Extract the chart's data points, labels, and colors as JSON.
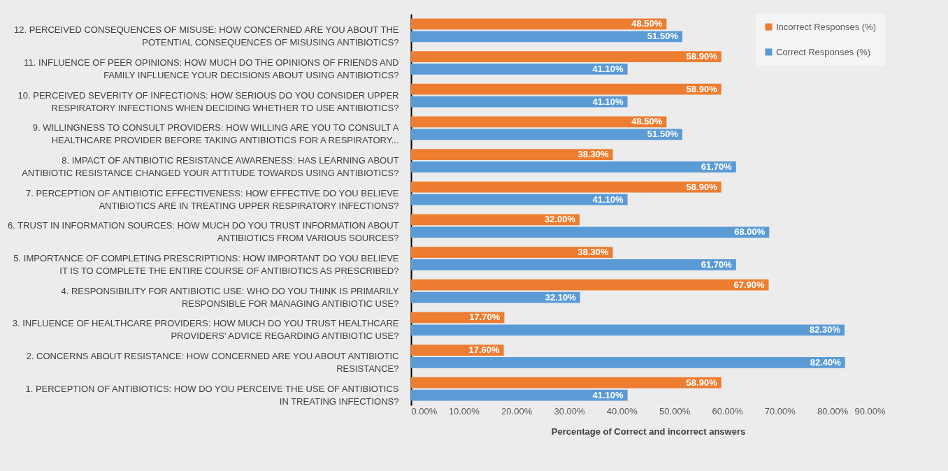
{
  "chart_data": {
    "type": "bar",
    "orientation": "horizontal",
    "xlabel": "Percentage of Correct and incorrect answers",
    "categories": [
      "12. PERCEIVED CONSEQUENCES OF MISUSE: HOW CONCERNED ARE YOU ABOUT THE POTENTIAL CONSEQUENCES OF MISUSING ANTIBIOTICS?",
      "11. INFLUENCE OF PEER OPINIONS: HOW MUCH DO THE OPINIONS OF FRIENDS AND FAMILY INFLUENCE YOUR DECISIONS ABOUT USING ANTIBIOTICS?",
      "10. PERCEIVED SEVERITY OF INFECTIONS: HOW SERIOUS DO YOU CONSIDER UPPER RESPIRATORY INFECTIONS WHEN DECIDING WHETHER TO USE ANTIBIOTICS?",
      "9. WILLINGNESS TO CONSULT PROVIDERS: HOW WILLING ARE YOU TO CONSULT A HEALTHCARE PROVIDER BEFORE TAKING ANTIBIOTICS FOR A RESPIRATORY...",
      "8. IMPACT OF ANTIBIOTIC RESISTANCE AWARENESS: HAS LEARNING ABOUT ANTIBIOTIC RESISTANCE CHANGED YOUR ATTITUDE TOWARDS USING ANTIBIOTICS?",
      "7. PERCEPTION OF ANTIBIOTIC EFFECTIVENESS: HOW EFFECTIVE DO YOU BELIEVE ANTIBIOTICS ARE IN TREATING UPPER RESPIRATORY INFECTIONS?",
      "6. TRUST IN INFORMATION SOURCES: HOW MUCH DO YOU TRUST INFORMATION ABOUT ANTIBIOTICS FROM VARIOUS SOURCES?",
      "5. IMPORTANCE OF COMPLETING PRESCRIPTIONS: HOW IMPORTANT DO YOU BELIEVE IT IS TO COMPLETE THE ENTIRE COURSE OF ANTIBIOTICS AS PRESCRIBED?",
      "4. RESPONSIBILITY FOR ANTIBIOTIC USE: WHO DO YOU THINK IS PRIMARILY RESPONSIBLE FOR MANAGING ANTIBIOTIC USE?",
      "3. INFLUENCE OF HEALTHCARE PROVIDERS: HOW MUCH DO YOU TRUST HEALTHCARE PROVIDERS' ADVICE REGARDING ANTIBIOTIC USE?",
      "2. CONCERNS ABOUT RESISTANCE: HOW CONCERNED ARE YOU ABOUT ANTIBIOTIC RESISTANCE?",
      "1. PERCEPTION OF ANTIBIOTICS: HOW DO YOU PERCEIVE THE USE OF ANTIBIOTICS IN TREATING INFECTIONS?"
    ],
    "series": [
      {
        "name": "Incorrect Responses (%)",
        "color": "#ed7d31",
        "values": [
          48.5,
          58.9,
          58.9,
          48.5,
          38.3,
          58.9,
          32.0,
          38.3,
          67.9,
          17.7,
          17.6,
          58.9
        ],
        "value_labels": [
          "48.50%",
          "58.90%",
          "58.90%",
          "48.50%",
          "38.30%",
          "58.90%",
          "32.00%",
          "38.30%",
          "67.90%",
          "17.70%",
          "17.60%",
          "58.90%"
        ]
      },
      {
        "name": "Correct Responses (%)",
        "color": "#5b9bd5",
        "values": [
          51.5,
          41.1,
          41.1,
          51.5,
          61.7,
          41.1,
          68.0,
          61.7,
          32.1,
          82.3,
          82.4,
          41.1
        ],
        "value_labels": [
          "51.50%",
          "41.10%",
          "41.10%",
          "51.50%",
          "61.70%",
          "41.10%",
          "68.00%",
          "61.70%",
          "32.10%",
          "82.30%",
          "82.40%",
          "41.10%"
        ]
      }
    ],
    "xlim": [
      0,
      90
    ],
    "xticks": [
      {
        "value": 0,
        "label": "0.00%"
      },
      {
        "value": 10,
        "label": "10.00%"
      },
      {
        "value": 20,
        "label": "20.00%"
      },
      {
        "value": 30,
        "label": "30.00%"
      },
      {
        "value": 40,
        "label": "40.00%"
      },
      {
        "value": 50,
        "label": "50.00%"
      },
      {
        "value": 60,
        "label": "60.00%"
      },
      {
        "value": 70,
        "label": "70.00%"
      },
      {
        "value": 80,
        "label": "80.00%"
      },
      {
        "value": 90,
        "label": "90.00%"
      }
    ],
    "legend": "top right"
  }
}
